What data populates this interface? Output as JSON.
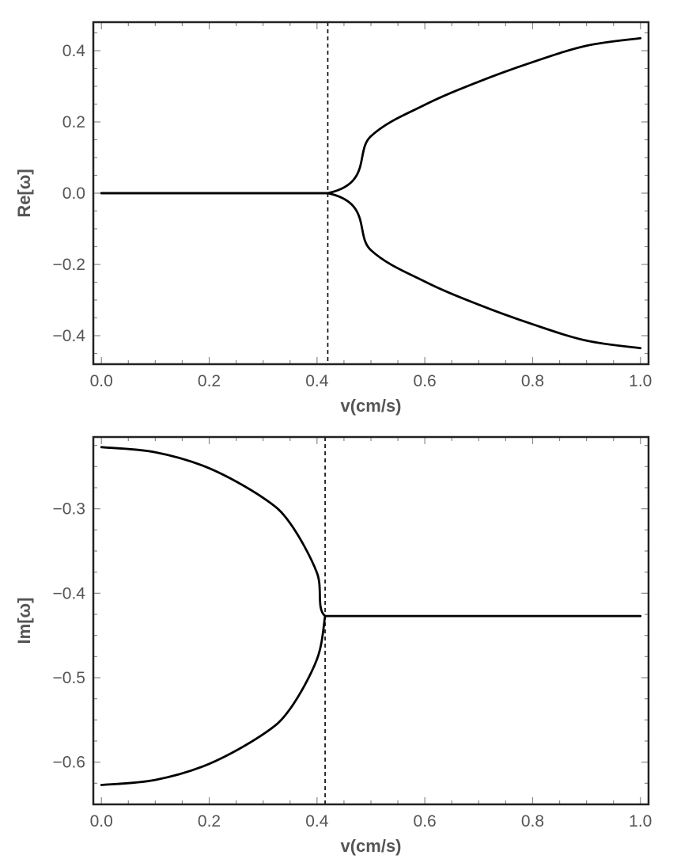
{
  "chart_data": [
    {
      "type": "line",
      "xlabel": "v(cm/s)",
      "ylabel": "Re[ω]",
      "xlim": [
        -0.015,
        1.015
      ],
      "ylim": [
        -0.48,
        0.48
      ],
      "xticks": [
        0.0,
        0.2,
        0.4,
        0.6,
        0.8,
        1.0
      ],
      "xtick_labels": [
        "0.0",
        "0.2",
        "0.4",
        "0.6",
        "0.8",
        "1.0"
      ],
      "yticks": [
        0.4,
        0.2,
        0.0,
        -0.2,
        -0.4
      ],
      "ytick_labels": [
        "0.4",
        "0.2",
        "0.0",
        "−0.2",
        "−0.4"
      ],
      "critical_v": 0.42,
      "series": [
        {
          "x": [
            0.0,
            0.42,
            0.5,
            0.6,
            0.7,
            0.8,
            0.9,
            1.0
          ],
          "y": [
            0.0,
            0.0,
            0.16,
            0.248,
            0.313,
            0.368,
            0.414,
            0.435
          ]
        },
        {
          "x": [
            0.0,
            0.42,
            0.5,
            0.6,
            0.7,
            0.8,
            0.9,
            1.0
          ],
          "y": [
            0.0,
            0.0,
            -0.16,
            -0.248,
            -0.313,
            -0.368,
            -0.414,
            -0.435
          ]
        }
      ],
      "grid": false,
      "legend": "none"
    },
    {
      "type": "line",
      "xlabel": "v(cm/s)",
      "ylabel": "Im[ω]",
      "xlim": [
        -0.015,
        1.015
      ],
      "ylim": [
        -0.65,
        -0.215
      ],
      "xticks": [
        0.0,
        0.2,
        0.4,
        0.6,
        0.8,
        1.0
      ],
      "xtick_labels": [
        "0.0",
        "0.2",
        "0.4",
        "0.6",
        "0.8",
        "1.0"
      ],
      "yticks": [
        -0.3,
        -0.4,
        -0.5,
        -0.6
      ],
      "ytick_labels": [
        "−0.3",
        "−0.4",
        "−0.5",
        "−0.6"
      ],
      "critical_v": 0.415,
      "series": [
        {
          "x": [
            0.0,
            0.1,
            0.2,
            0.3,
            0.35,
            0.4,
            0.415,
            0.5,
            0.6,
            0.7,
            0.8,
            0.9,
            1.0
          ],
          "y": [
            -0.227,
            -0.233,
            -0.252,
            -0.287,
            -0.317,
            -0.376,
            -0.427,
            -0.427,
            -0.427,
            -0.427,
            -0.427,
            -0.427,
            -0.427
          ]
        },
        {
          "x": [
            0.0,
            0.1,
            0.2,
            0.3,
            0.35,
            0.4,
            0.415
          ],
          "y": [
            -0.627,
            -0.621,
            -0.602,
            -0.567,
            -0.537,
            -0.478,
            -0.427
          ]
        }
      ],
      "grid": false,
      "legend": "none"
    }
  ]
}
